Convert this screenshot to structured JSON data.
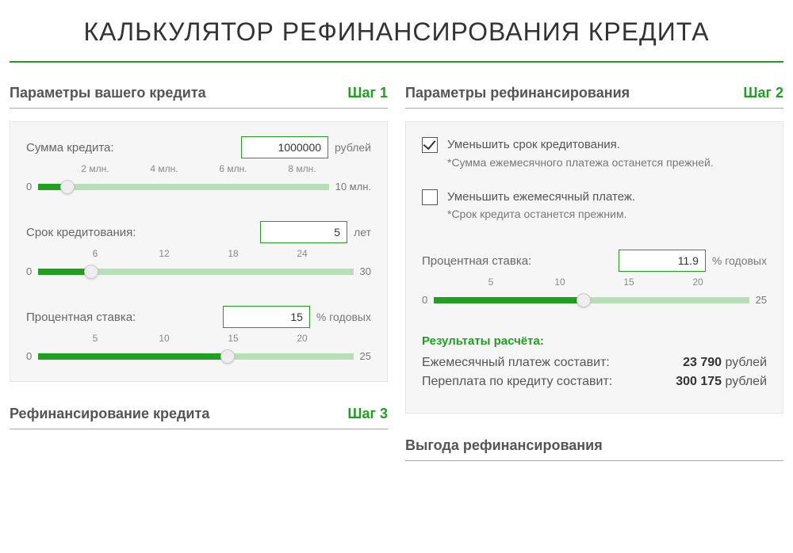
{
  "title": "КАЛЬКУЛЯТОР РЕФИНАНСИРОВАНИЯ КРЕДИТА",
  "colors": {
    "accent": "#1fa01f",
    "track_bg": "#b8e0b8",
    "panel_bg": "#f6f6f6",
    "text": "#555"
  },
  "left": {
    "title": "Параметры вашего кредита",
    "step": "Шаг 1",
    "amount": {
      "label": "Сумма кредита:",
      "value": "1000000",
      "unit": "рублей",
      "min": 0,
      "max": 10000000,
      "percent": 10,
      "ticks": [
        {
          "label": "2 млн.",
          "pos": 20
        },
        {
          "label": "4 млн.",
          "pos": 40
        },
        {
          "label": "6 млн.",
          "pos": 60
        },
        {
          "label": "8 млн.",
          "pos": 80
        }
      ],
      "min_label": "0",
      "max_label": "10 млн."
    },
    "term": {
      "label": "Срок кредитования:",
      "value": "5",
      "unit": "лет",
      "min": 0,
      "max": 30,
      "percent": 16.7,
      "ticks": [
        {
          "label": "6",
          "pos": 20
        },
        {
          "label": "12",
          "pos": 40
        },
        {
          "label": "18",
          "pos": 60
        },
        {
          "label": "24",
          "pos": 80
        }
      ],
      "min_label": "0",
      "max_label": "30"
    },
    "rate": {
      "label": "Процентная ставка:",
      "value": "15",
      "unit": "% годовых",
      "min": 0,
      "max": 25,
      "percent": 60,
      "ticks": [
        {
          "label": "5",
          "pos": 20
        },
        {
          "label": "10",
          "pos": 40
        },
        {
          "label": "15",
          "pos": 60
        },
        {
          "label": "20",
          "pos": 80
        }
      ],
      "min_label": "0",
      "max_label": "25"
    }
  },
  "right": {
    "title": "Параметры рефинансирования",
    "step": "Шаг 2",
    "options": [
      {
        "checked": true,
        "label": "Уменьшить срок кредитования.",
        "hint": "*Сумма ежемесячного платежа останется прежней."
      },
      {
        "checked": false,
        "label": "Уменьшить ежемесячный платеж.",
        "hint": "*Срок кредита останется прежним."
      }
    ],
    "rate": {
      "label": "Процентная ставка:",
      "value": "11.9",
      "unit": "% годовых",
      "min": 0,
      "max": 25,
      "percent": 47.6,
      "ticks": [
        {
          "label": "5",
          "pos": 20
        },
        {
          "label": "10",
          "pos": 40
        },
        {
          "label": "15",
          "pos": 60
        },
        {
          "label": "20",
          "pos": 80
        }
      ],
      "min_label": "0",
      "max_label": "25"
    },
    "results": {
      "title": "Результаты расчёта:",
      "monthly_label": "Ежемесячный платеж составит:",
      "monthly_value": "23 790",
      "monthly_unit": "рублей",
      "overpay_label": "Переплата по кредиту составит:",
      "overpay_value": "300 175",
      "overpay_unit": "рублей"
    }
  },
  "bottom_left": {
    "title": "Рефинансирование кредита",
    "step": "Шаг 3"
  },
  "bottom_right": {
    "title": "Выгода рефинансирования"
  }
}
